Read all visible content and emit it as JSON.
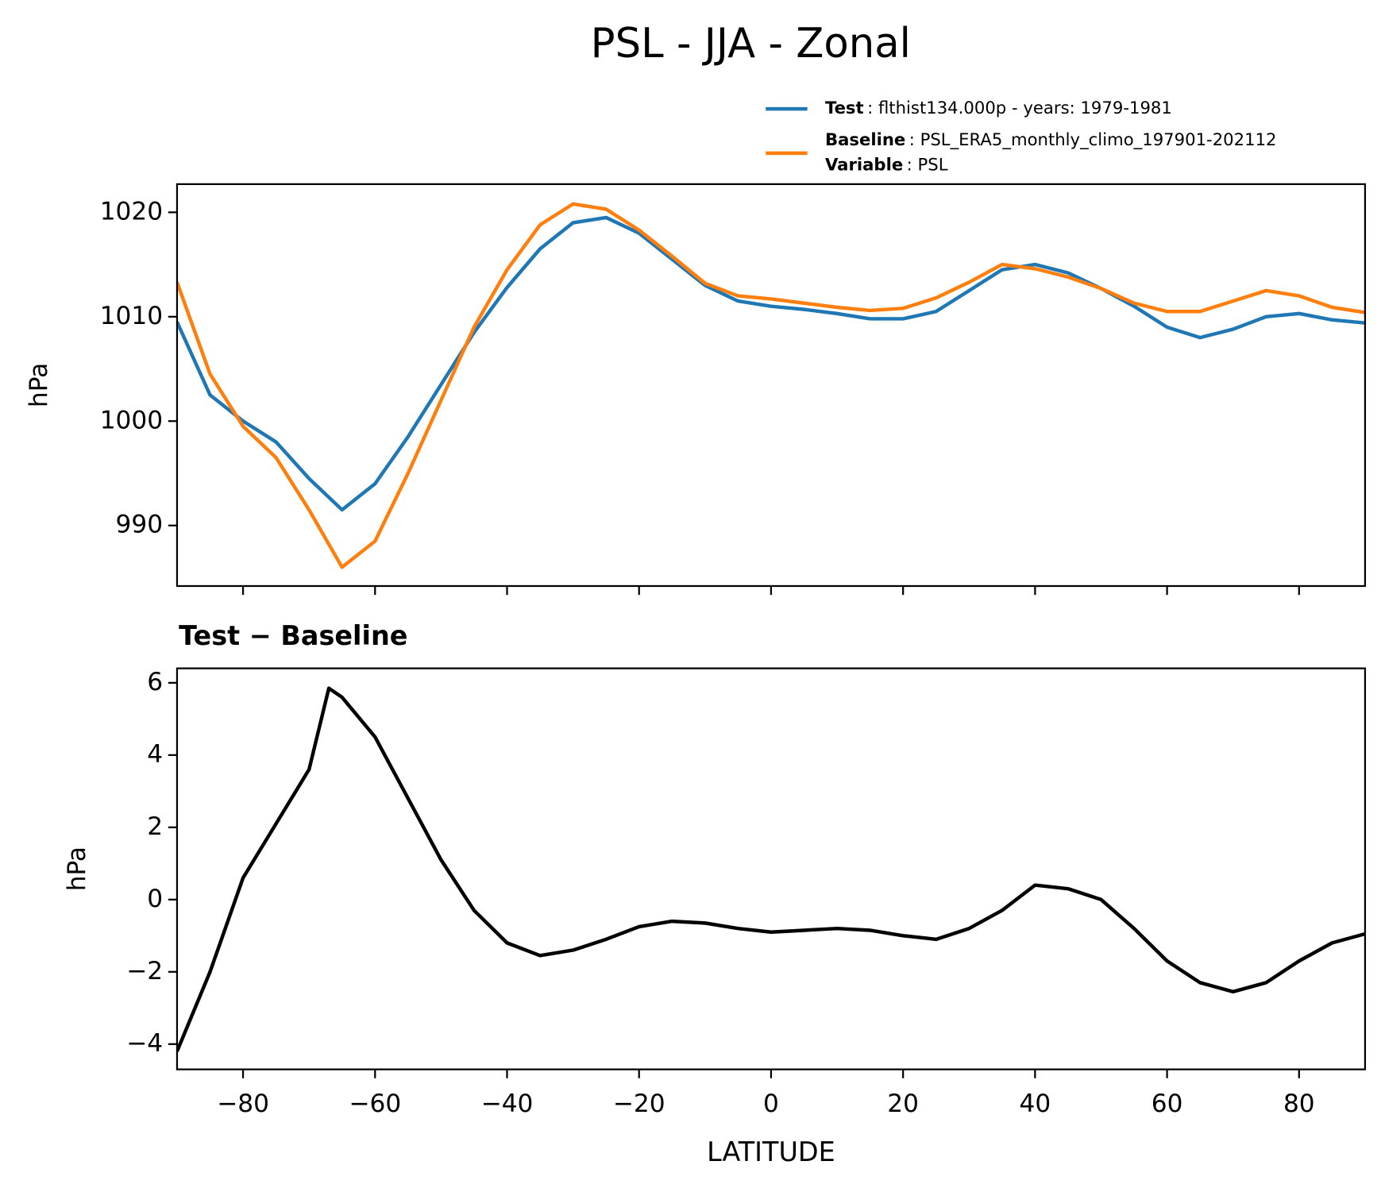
{
  "chart_data": [
    {
      "type": "line",
      "title": "PSL - JJA - Zonal",
      "ylabel": "hPa",
      "x": [
        -90,
        -85,
        -80,
        -75,
        -70,
        -65,
        -60,
        -55,
        -50,
        -45,
        -40,
        -35,
        -30,
        -25,
        -20,
        -15,
        -10,
        -5,
        0,
        5,
        10,
        15,
        20,
        25,
        30,
        35,
        40,
        45,
        50,
        55,
        60,
        65,
        70,
        75,
        80,
        85,
        90
      ],
      "series": [
        {
          "name": "Test",
          "label": ": flthist134.000p - years: 1979-1981",
          "color": "#1f77b4",
          "values": [
            1009.5,
            1002.5,
            1000,
            998,
            994.5,
            991.5,
            994,
            998.5,
            1003.5,
            1008.5,
            1012.8,
            1016.5,
            1019,
            1019.5,
            1018,
            1015.5,
            1013,
            1011.5,
            1011,
            1010.7,
            1010.3,
            1009.8,
            1009.8,
            1010.5,
            1012.5,
            1014.5,
            1015,
            1014.2,
            1012.7,
            1011,
            1009,
            1008,
            1008.8,
            1010,
            1010.3,
            1009.7,
            1009.4
          ]
        },
        {
          "name": "Baseline",
          "label": ": PSL_ERA5_monthly_climo_197901-202112",
          "color": "#ff7f0e",
          "values": [
            1013.3,
            1004.5,
            999.5,
            996.5,
            991.5,
            986,
            988.5,
            995,
            1002,
            1009,
            1014.5,
            1018.8,
            1020.8,
            1020.3,
            1018.3,
            1015.8,
            1013.2,
            1012,
            1011.7,
            1011.3,
            1010.9,
            1010.6,
            1010.8,
            1011.8,
            1013.3,
            1015,
            1014.6,
            1013.8,
            1012.7,
            1011.3,
            1010.5,
            1010.5,
            1011.5,
            1012.5,
            1012,
            1010.9,
            1010.4
          ]
        }
      ],
      "legend_extra": {
        "name": "Variable",
        "label": ": PSL"
      },
      "xlim": [
        -90,
        90
      ],
      "xticks": [
        -80,
        -60,
        -40,
        -20,
        0,
        20,
        40,
        60,
        80
      ],
      "ylim": [
        984.2,
        1022.7
      ],
      "yticks": [
        990,
        1000,
        1010,
        1020
      ]
    },
    {
      "type": "line",
      "title": "Test − Baseline",
      "ylabel": "hPa",
      "xlabel": "LATITUDE",
      "x": [
        -90,
        -85,
        -80,
        -75,
        -70,
        -67,
        -65,
        -60,
        -55,
        -50,
        -45,
        -40,
        -35,
        -30,
        -25,
        -20,
        -15,
        -10,
        -5,
        0,
        5,
        10,
        15,
        20,
        25,
        30,
        35,
        40,
        45,
        50,
        55,
        60,
        65,
        70,
        75,
        80,
        85,
        90
      ],
      "series": [
        {
          "color": "#000000",
          "values": [
            -4.2,
            -2,
            0.6,
            2.1,
            3.6,
            5.85,
            5.6,
            4.5,
            2.8,
            1.1,
            -0.3,
            -1.2,
            -1.55,
            -1.4,
            -1.1,
            -0.75,
            -0.6,
            -0.65,
            -0.8,
            -0.9,
            -0.85,
            -0.8,
            -0.85,
            -1.0,
            -1.1,
            -0.8,
            -0.3,
            0.4,
            0.3,
            0.0,
            -0.8,
            -1.7,
            -2.3,
            -2.55,
            -2.3,
            -1.7,
            -1.2,
            -0.95
          ]
        }
      ],
      "xlim": [
        -90,
        90
      ],
      "xticks": [
        {
          "value": -80,
          "label": "−80"
        },
        {
          "value": -60,
          "label": "−60"
        },
        {
          "value": -40,
          "label": "−40"
        },
        {
          "value": -20,
          "label": "−20"
        },
        0,
        20,
        40,
        60,
        80
      ],
      "ylim": [
        -4.7,
        6.4
      ],
      "yticks": [
        {
          "value": -4,
          "label": "−4"
        },
        {
          "value": -2,
          "label": "−2"
        },
        0,
        2,
        4,
        6
      ]
    }
  ]
}
